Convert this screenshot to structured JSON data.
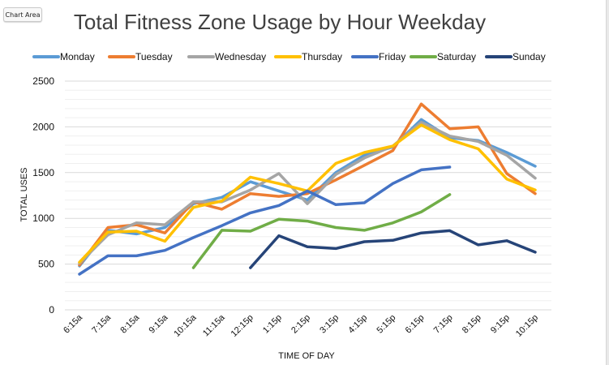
{
  "ui": {
    "chart_area_label": "Chart Area"
  },
  "chart_data": {
    "type": "line",
    "title": "Total Fitness Zone Usage by Hour Weekday",
    "xlabel": "TIME OF DAY",
    "ylabel": "TOTAL USES",
    "ylim": [
      0,
      2500
    ],
    "yticks": [
      0,
      500,
      1000,
      1500,
      2000,
      2500
    ],
    "grid": true,
    "legend_position": "top",
    "categories": [
      "6:15a",
      "7:15a",
      "8:15a",
      "9:15a",
      "10:15a",
      "11:15a",
      "12:15p",
      "1:15p",
      "2:15p",
      "3:15p",
      "4:15p",
      "5:15p",
      "6:15p",
      "7:15p",
      "8:15p",
      "9:15p",
      "10:15p"
    ],
    "series": [
      {
        "name": "Monday",
        "color": "#5B9BD5",
        "values": [
          480,
          870,
          830,
          900,
          1160,
          1230,
          1400,
          1300,
          1200,
          1500,
          1690,
          1780,
          2080,
          1880,
          1850,
          1720,
          1570
        ]
      },
      {
        "name": "Tuesday",
        "color": "#ED7D31",
        "values": [
          490,
          900,
          930,
          840,
          1180,
          1100,
          1270,
          1240,
          1270,
          1420,
          1580,
          1740,
          2250,
          1980,
          2000,
          1490,
          1270
        ]
      },
      {
        "name": "Wednesday",
        "color": "#A5A5A5",
        "values": [
          510,
          820,
          950,
          930,
          1180,
          1180,
          1310,
          1490,
          1160,
          1480,
          1660,
          1790,
          2050,
          1900,
          1840,
          1690,
          1440
        ]
      },
      {
        "name": "Thursday",
        "color": "#FFC000",
        "values": [
          520,
          850,
          860,
          750,
          1120,
          1190,
          1450,
          1380,
          1300,
          1600,
          1720,
          1790,
          2020,
          1860,
          1760,
          1430,
          1310
        ]
      },
      {
        "name": "Friday",
        "color": "#4472C4",
        "values": [
          390,
          590,
          590,
          650,
          790,
          920,
          1060,
          1140,
          1300,
          1150,
          1170,
          1380,
          1530,
          1560,
          null,
          null,
          null
        ]
      },
      {
        "name": "Saturday",
        "color": "#70AD47",
        "values": [
          null,
          null,
          null,
          null,
          460,
          870,
          860,
          990,
          970,
          900,
          870,
          950,
          1070,
          1260,
          null,
          null,
          null
        ]
      },
      {
        "name": "Sunday",
        "color": "#264478",
        "values": [
          null,
          null,
          null,
          null,
          null,
          null,
          460,
          810,
          690,
          670,
          745,
          760,
          840,
          865,
          710,
          755,
          630
        ]
      }
    ]
  }
}
